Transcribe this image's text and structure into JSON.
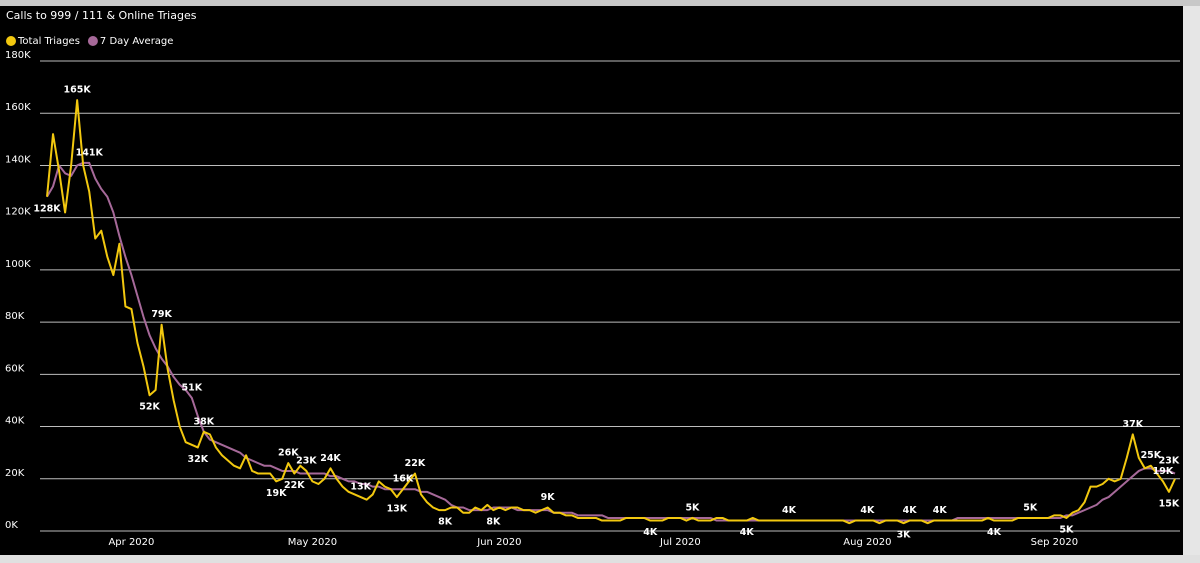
{
  "chart_data": {
    "type": "line",
    "title": "Calls to 999 / 111 & Online Triages",
    "categories": [
      null,
      null,
      null,
      null,
      null,
      null,
      null,
      null,
      null,
      null,
      null,
      null,
      null,
      null,
      "Apr 2020",
      null,
      null,
      null,
      null,
      null,
      null,
      null,
      null,
      null,
      null,
      null,
      null,
      null,
      null,
      null,
      null,
      null,
      null,
      null,
      null,
      null,
      null,
      null,
      null,
      null,
      null,
      null,
      null,
      null,
      "May 2020",
      null,
      null,
      null,
      null,
      null,
      null,
      null,
      null,
      null,
      null,
      null,
      null,
      null,
      null,
      null,
      null,
      null,
      null,
      null,
      null,
      null,
      null,
      null,
      null,
      null,
      null,
      null,
      null,
      null,
      null,
      "Jun 2020",
      null,
      null,
      null,
      null,
      null,
      null,
      null,
      null,
      null,
      null,
      null,
      null,
      null,
      null,
      null,
      null,
      null,
      null,
      null,
      null,
      null,
      null,
      null,
      null,
      null,
      null,
      null,
      null,
      null,
      "Jul 2020",
      null,
      null,
      null,
      null,
      null,
      null,
      null,
      null,
      null,
      null,
      null,
      null,
      null,
      null,
      null,
      null,
      null,
      null,
      null,
      null,
      null,
      null,
      null,
      null,
      null,
      null,
      null,
      null,
      null,
      null,
      "Aug 2020",
      null,
      null,
      null,
      null,
      null,
      null,
      null,
      null,
      null,
      null,
      null,
      null,
      null,
      null,
      null,
      null,
      null,
      null,
      null,
      null,
      null,
      null,
      null,
      null,
      null,
      null,
      null,
      null,
      null,
      null,
      "Sep 2020",
      null,
      null,
      null,
      null,
      null,
      null,
      null,
      null,
      null,
      null,
      null,
      null,
      null,
      null,
      null,
      null,
      null,
      null,
      null,
      null
    ],
    "series": [
      {
        "name": "Total Triages",
        "color": "#F2C80F",
        "values": [
          128000,
          152000,
          138000,
          122000,
          140000,
          165000,
          140000,
          130000,
          112000,
          115000,
          105000,
          98000,
          110000,
          86000,
          85000,
          72000,
          63000,
          52000,
          54000,
          79000,
          62000,
          50000,
          40000,
          34000,
          33000,
          32000,
          38000,
          37000,
          32000,
          29000,
          27000,
          25000,
          24000,
          29000,
          23000,
          22000,
          22000,
          22000,
          19000,
          20000,
          26000,
          22000,
          25000,
          23000,
          19000,
          18000,
          20000,
          24000,
          20000,
          17000,
          15000,
          14000,
          13000,
          12000,
          14000,
          19000,
          17000,
          16000,
          13000,
          16000,
          19000,
          22000,
          14000,
          11000,
          9000,
          8000,
          8000,
          9000,
          9000,
          7000,
          7000,
          9000,
          8000,
          10000,
          8000,
          9000,
          8000,
          9000,
          9000,
          8000,
          8000,
          7000,
          8000,
          9000,
          7000,
          7000,
          6000,
          6000,
          5000,
          5000,
          5000,
          5000,
          4000,
          4000,
          4000,
          4000,
          5000,
          5000,
          5000,
          5000,
          4000,
          4000,
          4000,
          5000,
          5000,
          5000,
          4000,
          5000,
          4000,
          4000,
          4000,
          5000,
          5000,
          4000,
          4000,
          4000,
          4000,
          5000,
          4000,
          4000,
          4000,
          4000,
          4000,
          4000,
          4000,
          4000,
          4000,
          4000,
          4000,
          4000,
          4000,
          4000,
          4000,
          3000,
          4000,
          4000,
          4000,
          4000,
          3000,
          4000,
          4000,
          4000,
          3000,
          4000,
          4000,
          4000,
          3000,
          4000,
          4000,
          4000,
          4000,
          4000,
          4000,
          4000,
          4000,
          4000,
          5000,
          4000,
          4000,
          4000,
          4000,
          5000,
          5000,
          5000,
          5000,
          5000,
          5000,
          6000,
          6000,
          5000,
          7000,
          8000,
          11000,
          17000,
          17000,
          18000,
          20000,
          19000,
          20000,
          28000,
          37000,
          28000,
          24000,
          25000,
          22000,
          19000,
          15000,
          20000
        ],
        "value_labels": [
          null,
          null,
          null,
          null,
          null,
          "165K",
          null,
          null,
          null,
          null,
          null,
          null,
          null,
          null,
          null,
          null,
          null,
          "52K",
          null,
          "79K",
          null,
          null,
          null,
          null,
          null,
          "32K",
          "38K",
          null,
          null,
          null,
          null,
          null,
          null,
          null,
          null,
          null,
          null,
          null,
          "19K",
          null,
          "26K",
          "22K",
          null,
          "23K",
          null,
          null,
          null,
          "24K",
          null,
          null,
          null,
          null,
          "13K",
          null,
          null,
          null,
          null,
          null,
          "13K",
          "16K",
          null,
          "22K",
          null,
          null,
          null,
          null,
          "8K",
          null,
          null,
          null,
          null,
          null,
          null,
          null,
          "8K",
          null,
          null,
          null,
          null,
          null,
          null,
          null,
          null,
          "9K",
          null,
          null,
          null,
          null,
          null,
          null,
          null,
          null,
          null,
          null,
          null,
          null,
          null,
          null,
          null,
          null,
          "4K",
          null,
          null,
          null,
          null,
          null,
          null,
          "5K",
          null,
          null,
          null,
          null,
          null,
          null,
          null,
          null,
          "4K",
          null,
          null,
          null,
          null,
          null,
          null,
          "4K",
          null,
          null,
          null,
          null,
          null,
          null,
          null,
          null,
          null,
          null,
          null,
          null,
          "4K",
          null,
          null,
          null,
          null,
          null,
          "3K",
          null,
          null,
          null,
          null,
          null,
          "4K",
          null,
          null,
          null,
          null,
          null,
          null,
          null,
          null,
          "4K",
          null,
          null,
          null,
          null,
          null,
          "5K",
          null,
          null,
          null,
          null,
          null,
          "5K",
          null,
          null,
          null,
          null,
          null,
          null,
          null,
          null,
          null,
          null,
          "37K",
          null,
          null,
          "25K",
          null,
          "19K",
          "15K",
          null
        ]
      },
      {
        "name": "7 Day Average",
        "color": "#A66999",
        "values": [
          128000,
          132000,
          140000,
          137000,
          136000,
          140000,
          141000,
          141000,
          135000,
          131000,
          128000,
          122000,
          113000,
          105000,
          98000,
          90000,
          82000,
          75000,
          70000,
          66000,
          63000,
          59000,
          56000,
          54000,
          51000,
          44000,
          38000,
          35000,
          34000,
          33000,
          32000,
          31000,
          30000,
          28000,
          27000,
          26000,
          25000,
          25000,
          24000,
          23000,
          23000,
          23000,
          22000,
          22000,
          22000,
          22000,
          22000,
          21000,
          21000,
          20000,
          19000,
          19000,
          18000,
          18000,
          17000,
          17000,
          16000,
          16000,
          16000,
          16000,
          16000,
          16000,
          15000,
          15000,
          14000,
          13000,
          12000,
          10000,
          9000,
          9000,
          8000,
          8000,
          8000,
          8000,
          9000,
          9000,
          9000,
          9000,
          8000,
          8000,
          8000,
          8000,
          8000,
          8000,
          7000,
          7000,
          7000,
          7000,
          6000,
          6000,
          6000,
          6000,
          6000,
          5000,
          5000,
          5000,
          5000,
          5000,
          5000,
          5000,
          5000,
          5000,
          5000,
          5000,
          5000,
          5000,
          5000,
          5000,
          5000,
          5000,
          5000,
          4000,
          4000,
          4000,
          4000,
          4000,
          4000,
          4000,
          4000,
          4000,
          4000,
          4000,
          4000,
          4000,
          4000,
          4000,
          4000,
          4000,
          4000,
          4000,
          4000,
          4000,
          4000,
          4000,
          4000,
          4000,
          4000,
          4000,
          4000,
          4000,
          4000,
          4000,
          4000,
          4000,
          4000,
          4000,
          4000,
          4000,
          4000,
          4000,
          4000,
          5000,
          5000,
          5000,
          5000,
          5000,
          5000,
          5000,
          5000,
          5000,
          5000,
          5000,
          5000,
          5000,
          5000,
          5000,
          5000,
          5000,
          5000,
          6000,
          6000,
          7000,
          8000,
          9000,
          10000,
          12000,
          13000,
          15000,
          17000,
          19000,
          21000,
          23000,
          24000,
          24000,
          23000,
          23000,
          23000,
          22000
        ],
        "value_labels": [
          "128K",
          null,
          null,
          null,
          null,
          null,
          null,
          "141K",
          null,
          null,
          null,
          null,
          null,
          null,
          null,
          null,
          null,
          null,
          null,
          null,
          null,
          null,
          null,
          null,
          "51K",
          null,
          null,
          null,
          null,
          null,
          null,
          null,
          null,
          null,
          null,
          null,
          null,
          null,
          null,
          null,
          null,
          null,
          null,
          null,
          null,
          null,
          null,
          null,
          null,
          null,
          null,
          null,
          null,
          null,
          null,
          null,
          null,
          null,
          null,
          null,
          null,
          null,
          null,
          null,
          null,
          null,
          null,
          null,
          null,
          null,
          null,
          null,
          null,
          null,
          null,
          null,
          null,
          null,
          null,
          null,
          null,
          null,
          null,
          null,
          null,
          null,
          null,
          null,
          null,
          null,
          null,
          null,
          null,
          null,
          null,
          null,
          null,
          null,
          null,
          null,
          null,
          null,
          null,
          null,
          null,
          null,
          null,
          null,
          null,
          null,
          null,
          null,
          null,
          null,
          null,
          null,
          null,
          null,
          null,
          null,
          null,
          null,
          null,
          null,
          null,
          null,
          null,
          null,
          null,
          null,
          null,
          null,
          null,
          null,
          null,
          null,
          null,
          null,
          null,
          null,
          null,
          null,
          null,
          "4K",
          null,
          null,
          null,
          null,
          null,
          null,
          null,
          null,
          null,
          null,
          null,
          null,
          null,
          null,
          null,
          null,
          null,
          null,
          null,
          null,
          null,
          null,
          null,
          null,
          null,
          null,
          null,
          null,
          null,
          null,
          null,
          null,
          null,
          null,
          null,
          null,
          null,
          null,
          null,
          null,
          null,
          null,
          "23K",
          null
        ]
      }
    ],
    "ylim": [
      0,
      180000
    ],
    "yticks": [
      {
        "value": 0,
        "label": "0K"
      },
      {
        "value": 20000,
        "label": "20K"
      },
      {
        "value": 40000,
        "label": "40K"
      },
      {
        "value": 60000,
        "label": "60K"
      },
      {
        "value": 80000,
        "label": "80K"
      },
      {
        "value": 100000,
        "label": "100K"
      },
      {
        "value": 120000,
        "label": "120K"
      },
      {
        "value": 140000,
        "label": "140K"
      },
      {
        "value": 160000,
        "label": "160K"
      },
      {
        "value": 180000,
        "label": "180K"
      }
    ],
    "grid": true,
    "legend": "top-left"
  }
}
